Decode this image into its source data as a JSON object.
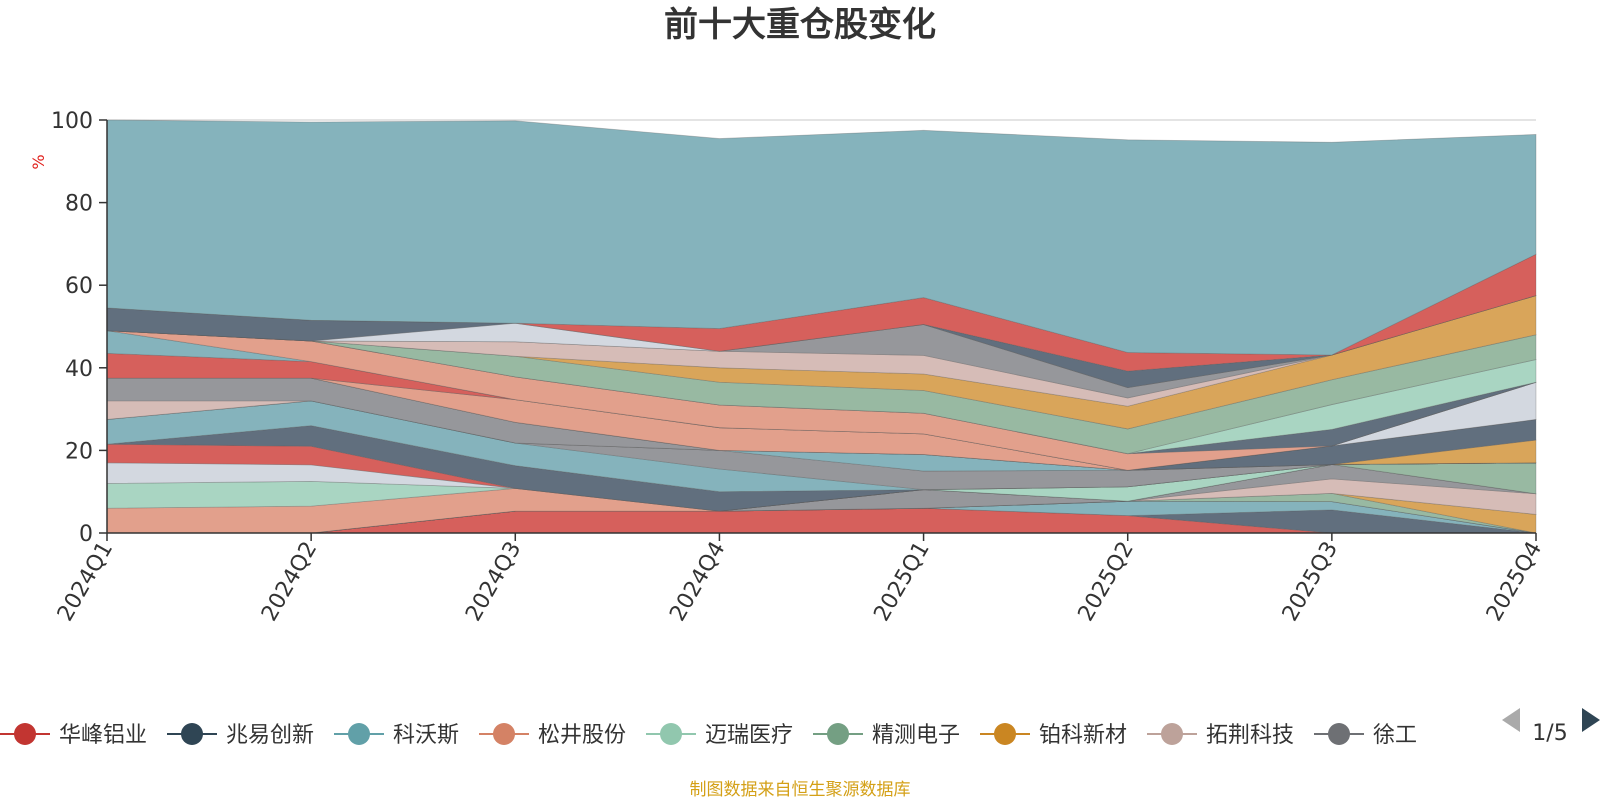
{
  "title": "前十大重仓股变化",
  "footer": "制图数据来自恒生聚源数据库",
  "legend_page": "1/5",
  "chart_data": {
    "type": "area",
    "stacked": true,
    "unit_label": "%",
    "ylim": [
      0,
      100
    ],
    "yticks": [
      0,
      20,
      40,
      60,
      80,
      100
    ],
    "grid": true,
    "legend_position": "bottom",
    "categories": [
      "2024Q1",
      "2024Q2",
      "2024Q3",
      "2024Q4",
      "2025Q1",
      "2025Q2",
      "2025Q3",
      "2025Q4"
    ],
    "series": [
      {
        "name": "华峰铝业",
        "color": "#d6605c",
        "values": [
          0,
          0,
          5.3,
          5.3,
          6,
          4.2,
          0,
          0
        ]
      },
      {
        "name": "",
        "color": "#616f7e",
        "values": [
          0,
          0,
          0,
          0,
          0,
          0,
          5.6,
          0
        ]
      },
      {
        "name": "",
        "color": "#85b3bc",
        "values": [
          0,
          0,
          0,
          0,
          0,
          3.5,
          2,
          0
        ]
      },
      {
        "name": "",
        "color": "#e2a08c",
        "values": [
          0,
          0,
          0,
          0,
          0,
          0,
          0,
          0
        ]
      },
      {
        "name": "",
        "color": "#a9d5c2",
        "values": [
          0,
          0,
          0,
          0,
          0,
          0,
          0,
          0
        ]
      },
      {
        "name": "",
        "color": "#98b9a2",
        "values": [
          0,
          0,
          0,
          0,
          0,
          0,
          2,
          0
        ]
      },
      {
        "name": "",
        "color": "#d9a55a",
        "values": [
          0,
          0,
          0,
          0,
          0,
          0,
          0,
          4.5
        ]
      },
      {
        "name": "",
        "color": "#d6bcb7",
        "values": [
          0,
          0,
          0,
          0,
          0,
          0,
          3.5,
          5
        ]
      },
      {
        "name": "",
        "color": "#96979b",
        "values": [
          0,
          0,
          0,
          0,
          4.5,
          0,
          3.5,
          0
        ]
      },
      {
        "name": "",
        "color": "#d3d8e0",
        "values": [
          0,
          0,
          0,
          0,
          0,
          0,
          0,
          0
        ]
      },
      {
        "name": "",
        "color": "#98b9a2",
        "values": [
          0,
          0,
          0,
          0,
          0,
          0,
          0,
          7.5
        ]
      },
      {
        "name": "",
        "color": "#e2a08c",
        "values": [
          6,
          6.5,
          5.5,
          0,
          0,
          0,
          0,
          0
        ]
      },
      {
        "name": "",
        "color": "#a9d5c2",
        "values": [
          6,
          6,
          0,
          0,
          0,
          3.5,
          0,
          0
        ]
      },
      {
        "name": "",
        "color": "#d3d8e0",
        "values": [
          5,
          4,
          0,
          0,
          0,
          0,
          0,
          0
        ]
      },
      {
        "name": "",
        "color": "#d6605c",
        "values": [
          4.5,
          4.5,
          0,
          0,
          0,
          0,
          0,
          0
        ]
      },
      {
        "name": "",
        "color": "#616f7e",
        "values": [
          0,
          5,
          5.5,
          4.7,
          0,
          0,
          0,
          0
        ]
      },
      {
        "name": "",
        "color": "#85b3bc",
        "values": [
          6,
          6,
          5.5,
          5.5,
          0,
          0,
          0,
          0
        ]
      },
      {
        "name": "",
        "color": "#96979b",
        "values": [
          0,
          0,
          0,
          4.5,
          4.5,
          4,
          0,
          0
        ]
      },
      {
        "name": "",
        "color": "#85b3bc",
        "values": [
          0,
          0,
          0,
          0,
          4,
          0,
          0,
          0
        ]
      },
      {
        "name": "",
        "color": "#d6bcb7",
        "values": [
          4.5,
          0,
          0,
          0,
          0,
          0,
          0,
          0
        ]
      },
      {
        "name": "",
        "color": "#96979b",
        "values": [
          5.5,
          5.5,
          5,
          0,
          0,
          0,
          0,
          0
        ]
      },
      {
        "name": "",
        "color": "#d9a55a",
        "values": [
          0,
          0,
          0,
          0,
          0,
          0,
          0,
          5.5
        ]
      },
      {
        "name": "",
        "color": "#616f7e",
        "values": [
          0,
          0,
          0,
          0,
          0,
          0,
          4.5,
          5
        ]
      },
      {
        "name": "",
        "color": "#e2a08c",
        "values": [
          0,
          0,
          5.5,
          5.5,
          5,
          0,
          0,
          0
        ]
      },
      {
        "name": "",
        "color": "#d3d8e0",
        "values": [
          0,
          0,
          0,
          0,
          0,
          0,
          0,
          9
        ]
      },
      {
        "name": "",
        "color": "#d6605c",
        "values": [
          6,
          4,
          0,
          0,
          0,
          0,
          0,
          0
        ]
      },
      {
        "name": "",
        "color": "#85b3bc",
        "values": [
          5.5,
          0,
          0,
          0,
          0,
          0,
          0,
          0
        ]
      },
      {
        "name": "",
        "color": "#e2a08c",
        "values": [
          0,
          5,
          5.5,
          5.5,
          5,
          4,
          0,
          0
        ]
      },
      {
        "name": "",
        "color": "#616f7e",
        "values": [
          0,
          0,
          0,
          0,
          0,
          0,
          4,
          0
        ]
      },
      {
        "name": "",
        "color": "#a9d5c2",
        "values": [
          0,
          0,
          0,
          0,
          0,
          0,
          6,
          5.5
        ]
      },
      {
        "name": "",
        "color": "#98b9a2",
        "values": [
          0,
          0,
          5,
          5.5,
          5.5,
          6,
          6,
          6
        ]
      },
      {
        "name": "",
        "color": "#d9a55a",
        "values": [
          0,
          0,
          0,
          3.5,
          4,
          5.5,
          6,
          9.5
        ]
      },
      {
        "name": "",
        "color": "#d6bcb7",
        "values": [
          0,
          0,
          3.5,
          4,
          4.5,
          2,
          0,
          0
        ]
      },
      {
        "name": "",
        "color": "#96979b",
        "values": [
          0,
          0,
          0,
          0,
          7.5,
          2.5,
          0,
          0
        ]
      },
      {
        "name": "",
        "color": "#d3d8e0",
        "values": [
          0,
          0,
          4.5,
          0,
          0,
          0,
          0,
          0
        ]
      },
      {
        "name": "",
        "color": "#616f7e",
        "values": [
          5.5,
          5,
          0,
          0,
          0,
          4,
          0,
          0
        ]
      },
      {
        "name": "",
        "color": "#d6605c",
        "values": [
          0,
          0,
          0,
          5.5,
          6.5,
          4.5,
          0,
          10
        ]
      },
      {
        "name": "",
        "color": "#85b3bc",
        "values": [
          45.5,
          48,
          49,
          46,
          40.5,
          51.5,
          51.5,
          29
        ]
      }
    ]
  },
  "legend": [
    {
      "label": "华峰铝业",
      "color": "#c23531",
      "icon": "circle-icon"
    },
    {
      "label": "兆易创新",
      "color": "#2f4554",
      "icon": "circle-icon"
    },
    {
      "label": "科沃斯",
      "color": "#61a0a8",
      "icon": "circle-icon"
    },
    {
      "label": "松井股份",
      "color": "#d48265",
      "icon": "circle-icon"
    },
    {
      "label": "迈瑞医疗",
      "color": "#91c7ae",
      "icon": "circle-icon"
    },
    {
      "label": "精测电子",
      "color": "#749f83",
      "icon": "circle-icon"
    },
    {
      "label": "铂科新材",
      "color": "#ca8622",
      "icon": "circle-icon"
    },
    {
      "label": "拓荆科技",
      "color": "#bda29a",
      "icon": "circle-icon"
    },
    {
      "label": "徐工",
      "color": "#6e7074",
      "icon": "circle-icon"
    }
  ]
}
